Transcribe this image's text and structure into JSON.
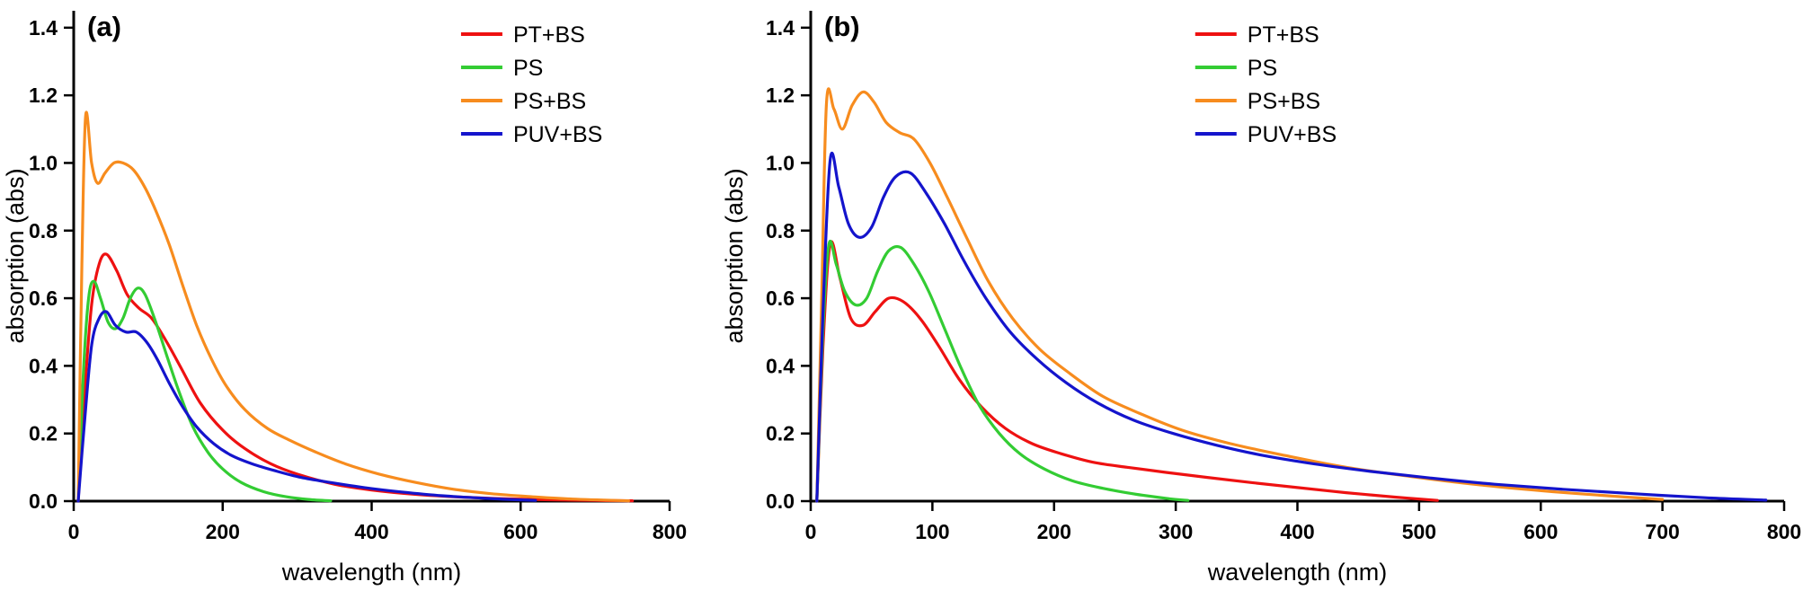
{
  "page": {
    "background": "#ffffff"
  },
  "chart_data": [
    {
      "type": "line",
      "panel_label": "(a)",
      "xlabel": "wavelength (nm)",
      "ylabel": "absorption (abs)",
      "xlim": [
        0,
        800
      ],
      "ylim": [
        0,
        1.45
      ],
      "xticks": [
        "0",
        "200",
        "400",
        "600",
        "800"
      ],
      "yticks": [
        "0.0",
        "0.2",
        "0.4",
        "0.6",
        "0.8",
        "1.0",
        "1.2",
        "1.4"
      ],
      "grid": false,
      "legend_position": "top-right-inside",
      "legend_anchor": {
        "x": 0.65,
        "y": 0.0
      },
      "series": [
        {
          "name": "PT+BS",
          "color": "#ee1111",
          "x": [
            6,
            14,
            24,
            34,
            44,
            58,
            72,
            88,
            105,
            125,
            145,
            170,
            200,
            230,
            265,
            300,
            350,
            400,
            460,
            520,
            580,
            640,
            700,
            750
          ],
          "y": [
            0.0,
            0.3,
            0.58,
            0.7,
            0.73,
            0.68,
            0.61,
            0.57,
            0.54,
            0.47,
            0.39,
            0.29,
            0.21,
            0.155,
            0.11,
            0.08,
            0.05,
            0.033,
            0.02,
            0.012,
            0.007,
            0.004,
            0.002,
            0.001
          ]
        },
        {
          "name": "PS",
          "color": "#33cc33",
          "x": [
            6,
            13,
            20,
            27,
            36,
            46,
            56,
            66,
            76,
            86,
            96,
            110,
            125,
            142,
            160,
            180,
            200,
            225,
            255,
            285,
            315,
            345
          ],
          "y": [
            0.0,
            0.38,
            0.6,
            0.65,
            0.6,
            0.53,
            0.51,
            0.54,
            0.6,
            0.63,
            0.61,
            0.53,
            0.43,
            0.32,
            0.22,
            0.145,
            0.095,
            0.055,
            0.028,
            0.013,
            0.005,
            0.001
          ]
        },
        {
          "name": "PS+BS",
          "color": "#f78c1e",
          "x": [
            6,
            11,
            16,
            24,
            32,
            42,
            54,
            66,
            80,
            95,
            110,
            128,
            146,
            165,
            185,
            205,
            230,
            260,
            290,
            325,
            365,
            410,
            460,
            510,
            560,
            615,
            670,
            745
          ],
          "y": [
            0.0,
            0.7,
            1.14,
            1.0,
            0.94,
            0.97,
            1.0,
            1.0,
            0.98,
            0.93,
            0.86,
            0.76,
            0.64,
            0.52,
            0.42,
            0.34,
            0.27,
            0.215,
            0.18,
            0.145,
            0.11,
            0.08,
            0.055,
            0.035,
            0.022,
            0.013,
            0.006,
            0.001
          ]
        },
        {
          "name": "PUV+BS",
          "color": "#1414cc",
          "x": [
            6,
            14,
            24,
            34,
            44,
            56,
            70,
            84,
            98,
            112,
            128,
            146,
            165,
            188,
            212,
            240,
            270,
            305,
            345,
            390,
            440,
            495,
            555,
            620
          ],
          "y": [
            0.0,
            0.22,
            0.46,
            0.54,
            0.56,
            0.52,
            0.5,
            0.5,
            0.47,
            0.42,
            0.35,
            0.28,
            0.22,
            0.17,
            0.135,
            0.11,
            0.09,
            0.07,
            0.055,
            0.04,
            0.027,
            0.016,
            0.008,
            0.002
          ]
        }
      ]
    },
    {
      "type": "line",
      "panel_label": "(b)",
      "xlabel": "wavelength (nm)",
      "ylabel": "absorption (abs)",
      "xlim": [
        0,
        800
      ],
      "ylim": [
        0,
        1.45
      ],
      "xticks": [
        "0",
        "100",
        "200",
        "300",
        "400",
        "500",
        "600",
        "700",
        "800"
      ],
      "yticks": [
        "0.0",
        "0.2",
        "0.4",
        "0.6",
        "0.8",
        "1.0",
        "1.2",
        "1.4"
      ],
      "grid": false,
      "legend_position": "top-right-inside",
      "legend_anchor": {
        "x": 0.395,
        "y": 0.0
      },
      "series": [
        {
          "name": "PT+BS",
          "color": "#ee1111",
          "x": [
            5,
            10,
            16,
            24,
            33,
            43,
            53,
            64,
            76,
            90,
            105,
            122,
            140,
            160,
            182,
            206,
            232,
            260,
            292,
            326,
            362,
            400,
            440,
            480,
            515
          ],
          "y": [
            0.0,
            0.45,
            0.76,
            0.66,
            0.54,
            0.52,
            0.56,
            0.6,
            0.59,
            0.54,
            0.46,
            0.36,
            0.28,
            0.215,
            0.17,
            0.14,
            0.115,
            0.1,
            0.085,
            0.07,
            0.055,
            0.04,
            0.025,
            0.012,
            0.002
          ]
        },
        {
          "name": "PS",
          "color": "#33cc33",
          "x": [
            5,
            10,
            15,
            21,
            28,
            37,
            46,
            55,
            64,
            74,
            85,
            97,
            110,
            124,
            139,
            155,
            172,
            192,
            215,
            240,
            268,
            295,
            310
          ],
          "y": [
            0.0,
            0.5,
            0.76,
            0.7,
            0.62,
            0.58,
            0.6,
            0.68,
            0.74,
            0.75,
            0.7,
            0.62,
            0.51,
            0.39,
            0.28,
            0.2,
            0.14,
            0.095,
            0.06,
            0.038,
            0.02,
            0.007,
            0.002
          ]
        },
        {
          "name": "PS+BS",
          "color": "#f78c1e",
          "x": [
            5,
            9,
            13,
            19,
            26,
            34,
            43,
            52,
            62,
            73,
            85,
            98,
            112,
            128,
            146,
            166,
            188,
            212,
            240,
            270,
            305,
            345,
            390,
            440,
            495,
            550,
            610,
            670,
            700
          ],
          "y": [
            0.0,
            0.6,
            1.18,
            1.16,
            1.1,
            1.17,
            1.21,
            1.18,
            1.12,
            1.09,
            1.07,
            1.0,
            0.9,
            0.78,
            0.65,
            0.54,
            0.45,
            0.38,
            0.31,
            0.26,
            0.21,
            0.17,
            0.135,
            0.1,
            0.072,
            0.048,
            0.028,
            0.012,
            0.005
          ]
        },
        {
          "name": "PUV+BS",
          "color": "#1414cc",
          "x": [
            5,
            10,
            16,
            23,
            31,
            40,
            50,
            60,
            70,
            82,
            95,
            110,
            126,
            144,
            164,
            186,
            210,
            236,
            265,
            298,
            334,
            372,
            414,
            460,
            510,
            562,
            618,
            676,
            735,
            785
          ],
          "y": [
            0.0,
            0.55,
            1.01,
            0.93,
            0.82,
            0.78,
            0.81,
            0.9,
            0.96,
            0.97,
            0.91,
            0.82,
            0.71,
            0.6,
            0.5,
            0.42,
            0.35,
            0.29,
            0.24,
            0.2,
            0.165,
            0.135,
            0.11,
            0.088,
            0.068,
            0.05,
            0.035,
            0.022,
            0.01,
            0.003
          ]
        }
      ]
    }
  ]
}
